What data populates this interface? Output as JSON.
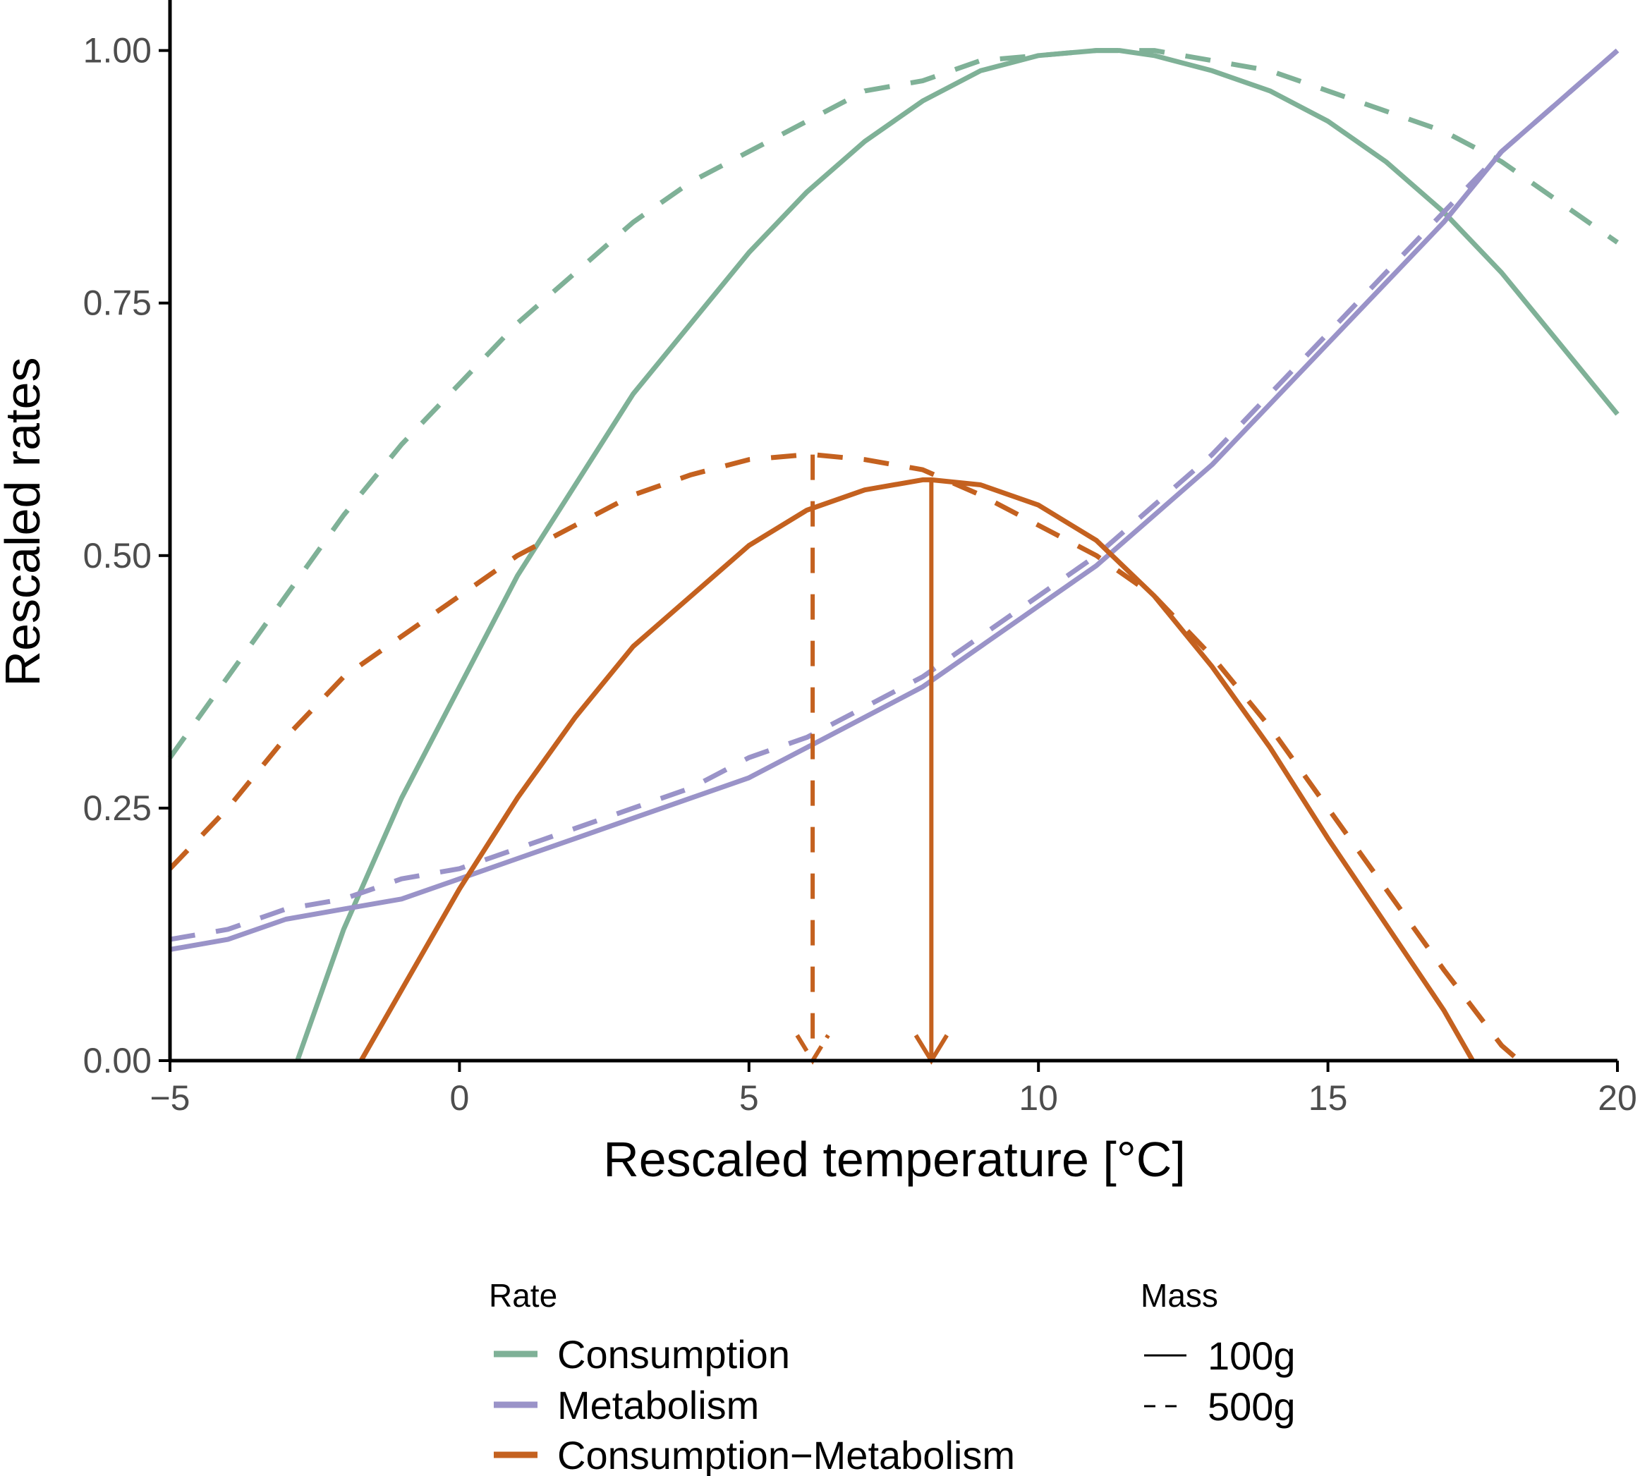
{
  "chart_data": {
    "type": "line",
    "xlabel": "Rescaled temperature [°C]",
    "ylabel": "Rescaled rates",
    "xlim": [
      -5,
      20
    ],
    "ylim": [
      0,
      1.05
    ],
    "x_ticks": [
      "−5",
      "0",
      "5",
      "10",
      "15",
      "20"
    ],
    "x_tick_values": [
      -5,
      0,
      5,
      10,
      15,
      20
    ],
    "y_ticks": [
      "0.00",
      "0.25",
      "0.50",
      "0.75",
      "1.00"
    ],
    "y_tick_values": [
      0,
      0.25,
      0.5,
      0.75,
      1.0
    ],
    "grid": false,
    "legend_position": "bottom",
    "colors": {
      "Consumption": "#7fb197",
      "Metabolism": "#9a93c8",
      "Consumption−Metabolism": "#c4611f"
    },
    "series": [
      {
        "rate": "Consumption",
        "mass": "100g",
        "linestyle": "solid",
        "x": [
          -2.8,
          -2,
          -1,
          0,
          1,
          2,
          3,
          4,
          5,
          6,
          7,
          8,
          9,
          10,
          11,
          11.4,
          12,
          13,
          14,
          15,
          16,
          17,
          18,
          19,
          20
        ],
        "y": [
          0.0,
          0.13,
          0.26,
          0.37,
          0.48,
          0.57,
          0.66,
          0.73,
          0.8,
          0.86,
          0.91,
          0.95,
          0.98,
          0.995,
          1.0,
          1.0,
          0.995,
          0.98,
          0.96,
          0.93,
          0.89,
          0.84,
          0.78,
          0.71,
          0.64
        ]
      },
      {
        "rate": "Consumption",
        "mass": "500g",
        "linestyle": "dashed",
        "x": [
          -5,
          -4,
          -3,
          -2,
          -1,
          0,
          1,
          2,
          3,
          4,
          5,
          6,
          7,
          8,
          9,
          10,
          11,
          11.5,
          12,
          13,
          14,
          15,
          16,
          17,
          18,
          19,
          20
        ],
        "y": [
          0.3,
          0.38,
          0.46,
          0.54,
          0.61,
          0.67,
          0.73,
          0.78,
          0.83,
          0.87,
          0.9,
          0.93,
          0.96,
          0.97,
          0.99,
          0.995,
          1.0,
          1.0,
          1.0,
          0.99,
          0.98,
          0.96,
          0.94,
          0.92,
          0.89,
          0.85,
          0.81
        ]
      },
      {
        "rate": "Metabolism",
        "mass": "100g",
        "linestyle": "solid",
        "x": [
          -5,
          -4,
          -3,
          -2,
          -1,
          0,
          1,
          2,
          3,
          4,
          5,
          6,
          7,
          8,
          9,
          10,
          11,
          12,
          13,
          14,
          15,
          16,
          17,
          18,
          19,
          20
        ],
        "y": [
          0.11,
          0.12,
          0.14,
          0.15,
          0.16,
          0.18,
          0.2,
          0.22,
          0.24,
          0.26,
          0.28,
          0.31,
          0.34,
          0.37,
          0.41,
          0.45,
          0.49,
          0.54,
          0.59,
          0.65,
          0.71,
          0.77,
          0.83,
          0.9,
          0.95,
          1.0
        ]
      },
      {
        "rate": "Metabolism",
        "mass": "500g",
        "linestyle": "dashed",
        "x": [
          -5,
          -4,
          -3,
          -2,
          -1,
          0,
          1,
          2,
          3,
          4,
          5,
          6,
          7,
          8,
          9,
          10,
          11,
          12,
          13,
          14,
          15,
          16,
          17,
          18,
          19,
          20
        ],
        "y": [
          0.12,
          0.13,
          0.15,
          0.16,
          0.18,
          0.19,
          0.21,
          0.23,
          0.25,
          0.27,
          0.3,
          0.32,
          0.35,
          0.38,
          0.42,
          0.46,
          0.5,
          0.55,
          0.6,
          0.66,
          0.72,
          0.78,
          0.84,
          0.9,
          0.95,
          1.0
        ]
      },
      {
        "rate": "Consumption−Metabolism",
        "mass": "100g",
        "linestyle": "solid",
        "x": [
          -1.7,
          -1,
          0,
          1,
          2,
          3,
          4,
          5,
          6,
          7,
          8,
          8.15,
          9,
          10,
          11,
          12,
          13,
          14,
          15,
          16,
          17,
          17.5
        ],
        "y": [
          0.0,
          0.07,
          0.17,
          0.26,
          0.34,
          0.41,
          0.46,
          0.51,
          0.545,
          0.565,
          0.575,
          0.575,
          0.57,
          0.55,
          0.515,
          0.46,
          0.39,
          0.31,
          0.22,
          0.135,
          0.05,
          0.0
        ]
      },
      {
        "rate": "Consumption−Metabolism",
        "mass": "500g",
        "linestyle": "dashed",
        "x": [
          -5,
          -4,
          -3,
          -2,
          -1,
          0,
          1,
          2,
          3,
          4,
          5,
          6,
          6.1,
          7,
          8,
          9,
          10,
          11,
          12,
          13,
          14,
          15,
          16,
          17,
          18,
          18.3
        ],
        "y": [
          0.19,
          0.25,
          0.32,
          0.38,
          0.42,
          0.46,
          0.5,
          0.53,
          0.56,
          0.58,
          0.595,
          0.6,
          0.6,
          0.595,
          0.585,
          0.56,
          0.53,
          0.5,
          0.46,
          0.4,
          0.33,
          0.25,
          0.17,
          0.09,
          0.015,
          0.0
        ]
      }
    ],
    "annotations": [
      {
        "label": "optimum arrow 500g",
        "x": 6.1,
        "y_from": 0.6,
        "y_to": 0.0,
        "linestyle": "dashed"
      },
      {
        "label": "optimum arrow 100g",
        "x": 8.15,
        "y_from": 0.575,
        "y_to": 0.0,
        "linestyle": "solid"
      }
    ],
    "legend": {
      "rate_title": "Rate",
      "rate_items": [
        "Consumption",
        "Metabolism",
        "Consumption−Metabolism"
      ],
      "mass_title": "Mass",
      "mass_items": [
        {
          "label": "100g",
          "linestyle": "solid"
        },
        {
          "label": "500g",
          "linestyle": "dashed"
        }
      ]
    }
  }
}
